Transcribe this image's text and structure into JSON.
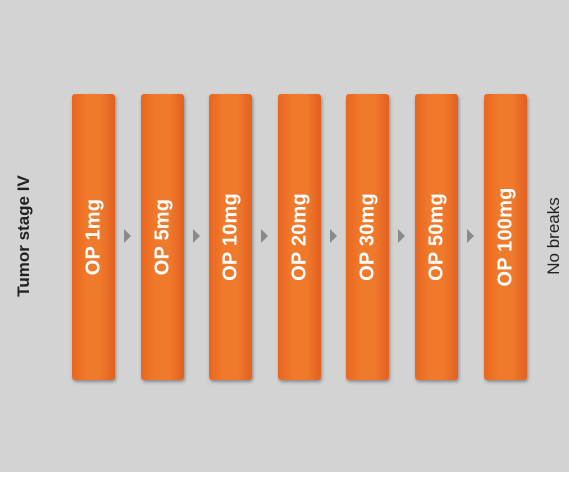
{
  "left_label": "Tumor stage IV",
  "right_label": "No breaks",
  "steps": [
    {
      "label": "OP 1mg"
    },
    {
      "label": "OP 5mg"
    },
    {
      "label": "OP 10mg"
    },
    {
      "label": "OP 20mg"
    },
    {
      "label": "OP 30mg"
    },
    {
      "label": "OP 50mg"
    },
    {
      "label": "OP 100mg"
    }
  ],
  "colors": {
    "background": "#d3d3d3",
    "step_fill": "#f07a2c",
    "step_text": "#ffffff",
    "arrow": "#8a8a8a"
  }
}
